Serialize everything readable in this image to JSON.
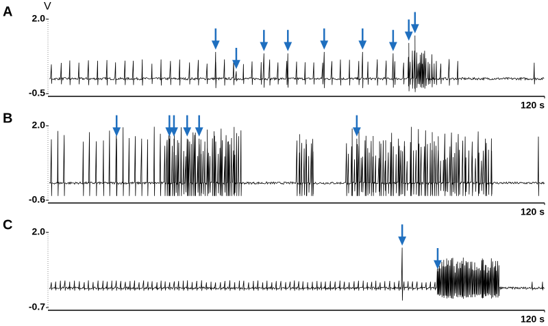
{
  "chart_data": [
    {
      "type": "trace",
      "title": "A",
      "y_label": "V",
      "color": "#000000",
      "arrow_color": "#1f6fbf",
      "xlim": [
        0,
        120
      ],
      "xticks": [
        {
          "value": 120,
          "label": "120 s"
        }
      ],
      "ylim": [
        -0.5,
        2.0
      ],
      "yticks": [
        {
          "value": 2.0,
          "label": "2.0"
        },
        -0.5
      ],
      "arrows": {
        "x": [
          40.3,
          45.3,
          52.0,
          57.8,
          66.6,
          75.9,
          83.3,
          87.1,
          88.6
        ],
        "y": [
          1.0,
          0.35,
          0.95,
          0.95,
          1.0,
          1.0,
          0.95,
          1.3,
          1.55
        ]
      }
    },
    {
      "type": "trace",
      "title": "B",
      "color": "#000000",
      "arrow_color": "#1f6fbf",
      "xlim": [
        0,
        120
      ],
      "xticks": [
        {
          "value": 120,
          "label": "120 s"
        }
      ],
      "ylim": [
        -0.6,
        2.0
      ],
      "yticks": [
        {
          "value": 2.0,
          "label": "2.0"
        },
        -0.6
      ],
      "arrows": {
        "x": [
          16.3,
          29.1,
          30.2,
          33.4,
          36.3,
          74.5
        ],
        "y": [
          1.65,
          1.65,
          1.65,
          1.65,
          1.65,
          1.65
        ]
      }
    },
    {
      "type": "trace",
      "title": "C",
      "color": "#000000",
      "arrow_color": "#1f6fbf",
      "xlim": [
        0,
        120
      ],
      "xticks": [
        {
          "value": 120,
          "label": "120 s"
        }
      ],
      "ylim": [
        -0.7,
        2.0
      ],
      "yticks": [
        {
          "value": 2.0,
          "label": "2.0"
        },
        -0.7
      ],
      "arrows": {
        "x": [
          85.5,
          94.1
        ],
        "y": [
          1.55,
          0.7
        ]
      }
    }
  ]
}
